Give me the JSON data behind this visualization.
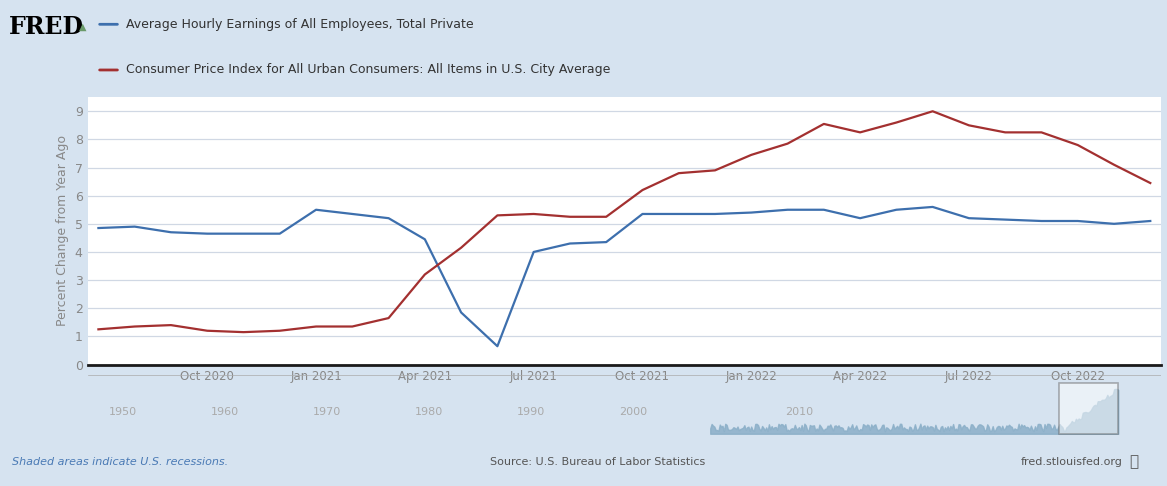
{
  "legend_line1": "Average Hourly Earnings of All Employees, Total Private",
  "legend_line2": "Consumer Price Index for All Urban Consumers: All Items in U.S. City Average",
  "ylabel": "Percent Change from Year Ago",
  "source_text": "Source: U.S. Bureau of Labor Statistics",
  "shaded_text": "Shaded areas indicate U.S. recessions.",
  "fred_text": "fred.stlouisfed.org",
  "background_color": "#d6e3f0",
  "plot_background_color": "#ffffff",
  "blue_color": "#3d6fad",
  "red_color": "#a33030",
  "ylim": [
    0,
    9.5
  ],
  "yticks": [
    0,
    1,
    2,
    3,
    4,
    5,
    6,
    7,
    8,
    9
  ],
  "blue_y": [
    4.85,
    4.9,
    4.7,
    4.65,
    4.65,
    4.65,
    5.5,
    5.35,
    5.2,
    4.45,
    1.85,
    0.65,
    4.0,
    4.3,
    4.35,
    5.35,
    5.35,
    5.35,
    5.4,
    5.5,
    5.5,
    5.2,
    5.5,
    5.6,
    5.2,
    5.15,
    5.1,
    5.1,
    5.0,
    5.1
  ],
  "red_y": [
    1.25,
    1.35,
    1.4,
    1.2,
    1.15,
    1.2,
    1.35,
    1.35,
    1.65,
    3.2,
    4.15,
    5.3,
    5.35,
    5.25,
    5.25,
    6.2,
    6.8,
    6.9,
    7.45,
    7.85,
    8.55,
    8.25,
    8.6,
    9.0,
    8.5,
    8.25,
    8.25,
    7.8,
    7.1,
    6.45
  ],
  "xtick_labels": [
    "Oct 2020",
    "Jan 2021",
    "Apr 2021",
    "Jul 2021",
    "Oct 2021",
    "Jan 2022",
    "Apr 2022",
    "Jul 2022",
    "Oct 2022"
  ],
  "xtick_positions": [
    3,
    6,
    9,
    12,
    15,
    18,
    21,
    24,
    27
  ],
  "bottom_year_labels": [
    "1950",
    "1960",
    "1970",
    "1980",
    "1990",
    "2000",
    "2010"
  ],
  "bottom_year_xpos": [
    0.02,
    0.115,
    0.21,
    0.305,
    0.4,
    0.495,
    0.65
  ],
  "header_bg_color": "#c8d9ea",
  "grid_color": "#d0d8e4",
  "tick_color": "#888888",
  "bottom_spine_color": "#1a1a1a"
}
